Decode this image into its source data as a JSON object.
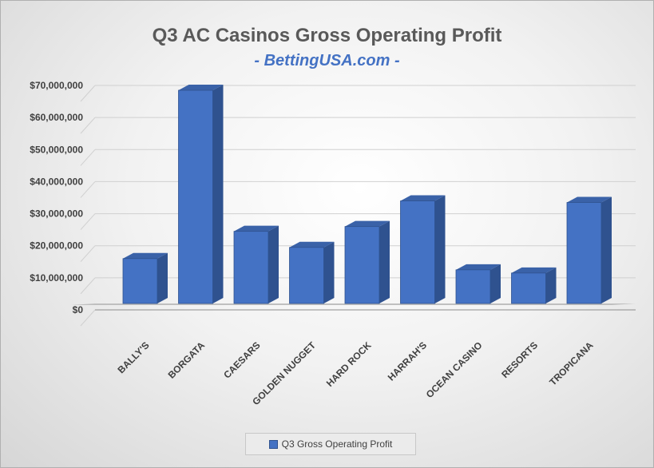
{
  "chart_data": {
    "type": "bar",
    "title": "Q3 AC Casinos Gross Operating Profit",
    "subtitle": "- BettingUSA.com -",
    "categories": [
      "BALLY'S",
      "BORGATA",
      "CAESARS",
      "GOLDEN NUGGET",
      "HARD ROCK",
      "HARRAH'S",
      "OCEAN CASINO",
      "RESORTS",
      "TROPICANA"
    ],
    "series": [
      {
        "name": "Q3 Gross Operating Profit",
        "values": [
          14000000,
          66500000,
          22500000,
          17500000,
          24000000,
          32000000,
          10500000,
          9500000,
          31500000
        ]
      }
    ],
    "ylim": [
      0,
      70000000
    ],
    "yticks": [
      0,
      10000000,
      20000000,
      30000000,
      40000000,
      50000000,
      60000000,
      70000000
    ],
    "ytick_labels": [
      "$0",
      "$10,000,000",
      "$20,000,000",
      "$30,000,000",
      "$40,000,000",
      "$50,000,000",
      "$60,000,000",
      "$70,000,000"
    ],
    "legend_position": "bottom",
    "grid": true,
    "three_d": true,
    "bar_color": "#4472c4"
  }
}
